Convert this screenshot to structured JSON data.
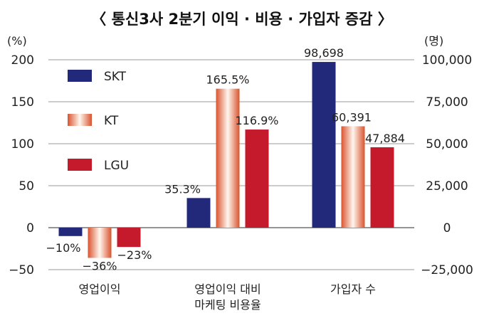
{
  "chart_data": {
    "type": "bar",
    "title": "〈 통신3사 2분기 이익 · 비용 · 가입자 증감 〉",
    "left_unit": "(%)",
    "right_unit": "(명)",
    "left_ylim": [
      -50,
      200
    ],
    "left_ticks": [
      "−50",
      "0",
      "50",
      "100",
      "150",
      "200"
    ],
    "left_tick_values": [
      -50,
      0,
      50,
      100,
      150,
      200
    ],
    "right_ylim": [
      -25000,
      100000
    ],
    "right_ticks": [
      "−25,000",
      "0",
      "25,000",
      "50,000",
      "75,000",
      "100,000"
    ],
    "right_tick_values": [
      -25000,
      0,
      25000,
      50000,
      75000,
      100000
    ],
    "grid": "horizontal",
    "legend_position": "top-left",
    "categories": [
      {
        "lines": [
          "영업이익"
        ],
        "axis": "left"
      },
      {
        "lines": [
          "영업이익 대비",
          "마케팅 비용율"
        ],
        "axis": "left"
      },
      {
        "lines": [
          "가입자 수"
        ],
        "axis": "right"
      }
    ],
    "series": [
      {
        "name": "SKT",
        "color": "#23297a",
        "style": "solid",
        "values": [
          -10,
          35.3,
          98698
        ],
        "labels": [
          "−10%",
          "35.3%",
          "98,698"
        ]
      },
      {
        "name": "KT",
        "color": "#e8865a",
        "style": "gradient",
        "values": [
          -36,
          165.5,
          60391
        ],
        "labels": [
          "−36%",
          "165.5%",
          "60,391"
        ]
      },
      {
        "name": "LGU",
        "color": "#c41a2c",
        "style": "solid",
        "values": [
          -23,
          116.9,
          47884
        ],
        "labels": [
          "−23%",
          "116.9%",
          "47,884"
        ]
      }
    ]
  }
}
